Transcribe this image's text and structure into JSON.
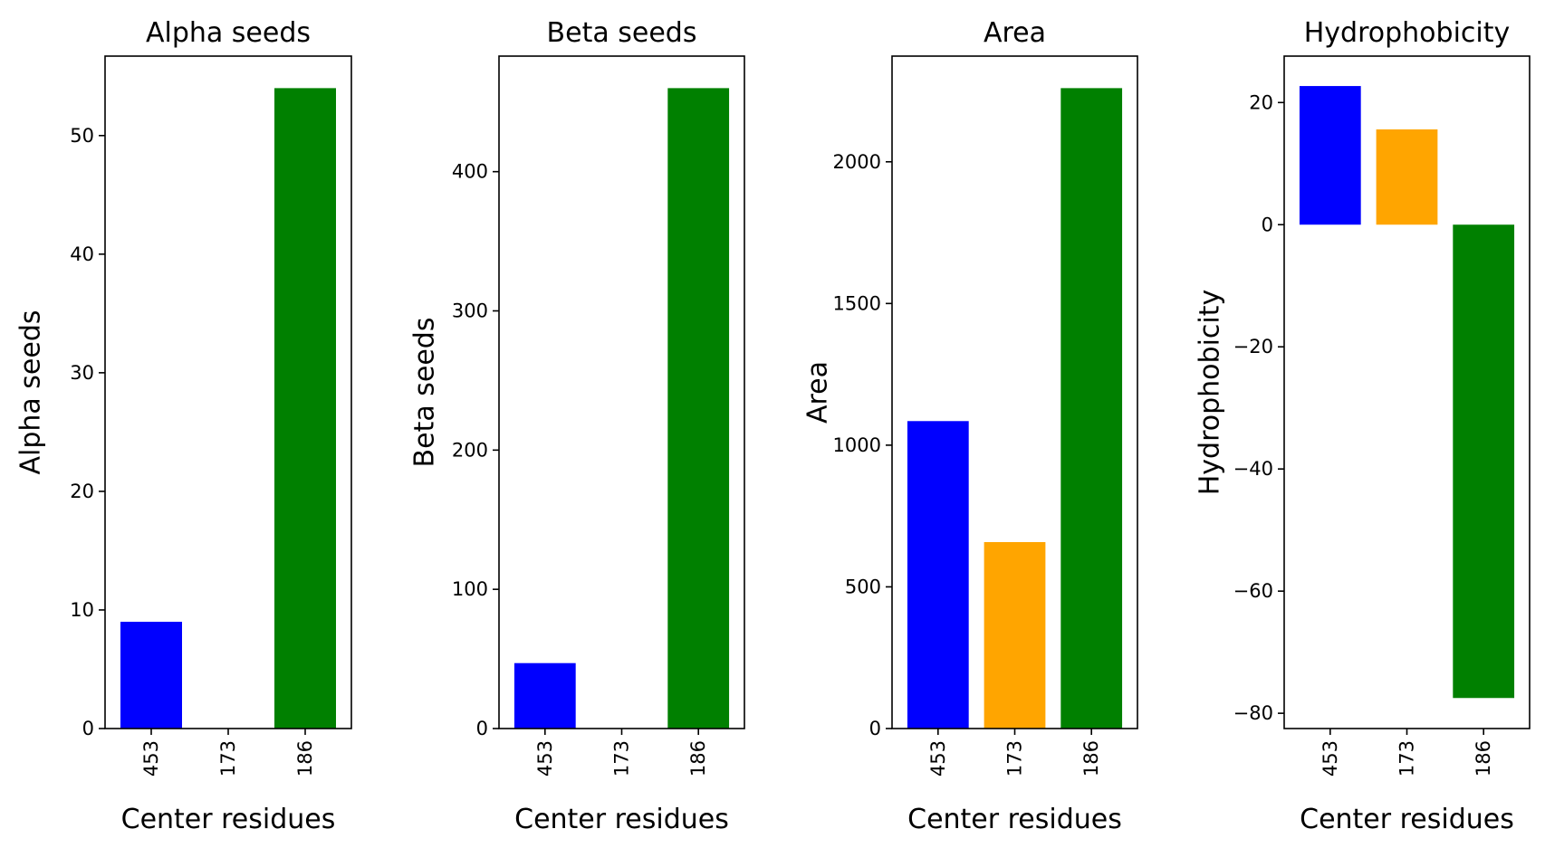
{
  "chart_data": [
    {
      "type": "bar",
      "title": "Alpha seeds",
      "xlabel": "Center residues",
      "ylabel": "Alpha seeds",
      "categories": [
        "453",
        "173",
        "186"
      ],
      "values": [
        9,
        0,
        54
      ],
      "colors": [
        "#0000ff",
        "#ffa500",
        "#008000"
      ],
      "ylim": [
        0,
        56.7
      ],
      "yticks": [
        0,
        10,
        20,
        30,
        40,
        50
      ],
      "ytick_labels": [
        "0",
        "10",
        "20",
        "30",
        "40",
        "50"
      ]
    },
    {
      "type": "bar",
      "title": "Beta seeds",
      "xlabel": "Center residues",
      "ylabel": "Beta seeds",
      "categories": [
        "453",
        "173",
        "186"
      ],
      "values": [
        47,
        0,
        460
      ],
      "colors": [
        "#0000ff",
        "#ffa500",
        "#008000"
      ],
      "ylim": [
        0,
        483
      ],
      "yticks": [
        0,
        100,
        200,
        300,
        400
      ],
      "ytick_labels": [
        "0",
        "100",
        "200",
        "300",
        "400"
      ]
    },
    {
      "type": "bar",
      "title": "Area",
      "xlabel": "Center residues",
      "ylabel": "Area",
      "categories": [
        "453",
        "173",
        "186"
      ],
      "values": [
        1085,
        658,
        2260
      ],
      "colors": [
        "#0000ff",
        "#ffa500",
        "#008000"
      ],
      "ylim": [
        0,
        2373
      ],
      "yticks": [
        0,
        500,
        1000,
        1500,
        2000
      ],
      "ytick_labels": [
        "0",
        "500",
        "1000",
        "1500",
        "2000"
      ]
    },
    {
      "type": "bar",
      "title": "Hydrophobicity",
      "xlabel": "Center residues",
      "ylabel": "Hydrophobicity",
      "categories": [
        "453",
        "173",
        "186"
      ],
      "values": [
        22.7,
        15.6,
        -77.5
      ],
      "colors": [
        "#0000ff",
        "#ffa500",
        "#008000"
      ],
      "ylim": [
        -82.5,
        27.6
      ],
      "yticks": [
        -80,
        -60,
        -40,
        -20,
        0,
        20
      ],
      "ytick_labels": [
        "−80",
        "−60",
        "−40",
        "−20",
        "0",
        "20"
      ]
    }
  ]
}
